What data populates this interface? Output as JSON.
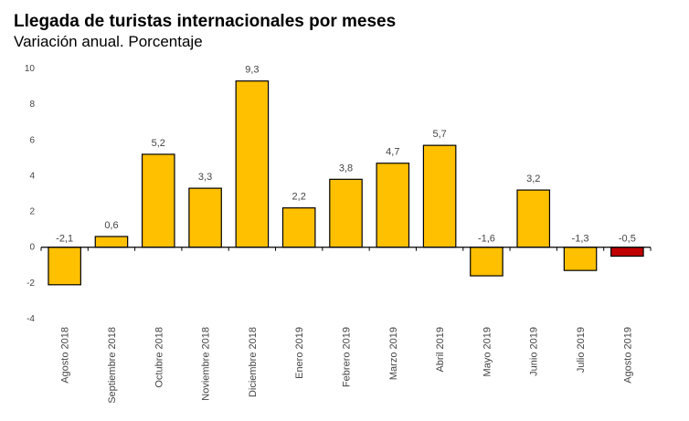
{
  "chart_data": {
    "type": "bar",
    "title": "Llegada de turistas internacionales por meses",
    "subtitle": "Variación anual. Porcentaje",
    "xlabel": "",
    "ylabel": "",
    "ylim": [
      -4,
      10
    ],
    "yticks": [
      10,
      8,
      6,
      4,
      2,
      0,
      -2,
      -4
    ],
    "grid": false,
    "legend": "none",
    "categories": [
      "Agosto 2018",
      "Septiembre 2018",
      "Octubre 2018",
      "Noviembre 2018",
      "Diciembre 2018",
      "Enero 2019",
      "Febrero 2019",
      "Marzo 2019",
      "Abril 2019",
      "Mayo 2019",
      "Junio 2019",
      "Julio 2019",
      "Agosto 2019"
    ],
    "values": [
      -2.1,
      0.6,
      5.2,
      3.3,
      9.3,
      2.2,
      3.8,
      4.7,
      5.7,
      -1.6,
      3.2,
      -1.3,
      -0.5
    ],
    "value_labels": [
      "-2,1",
      "0,6",
      "5,2",
      "3,3",
      "9,3",
      "2,2",
      "3,8",
      "4,7",
      "5,7",
      "-1,6",
      "3,2",
      "-1,3",
      "-0,5"
    ],
    "colors": {
      "default_bar": "#FFC000",
      "highlight_bar": "#C00000",
      "bar_outline": "#000000"
    },
    "highlight_index": 12
  }
}
